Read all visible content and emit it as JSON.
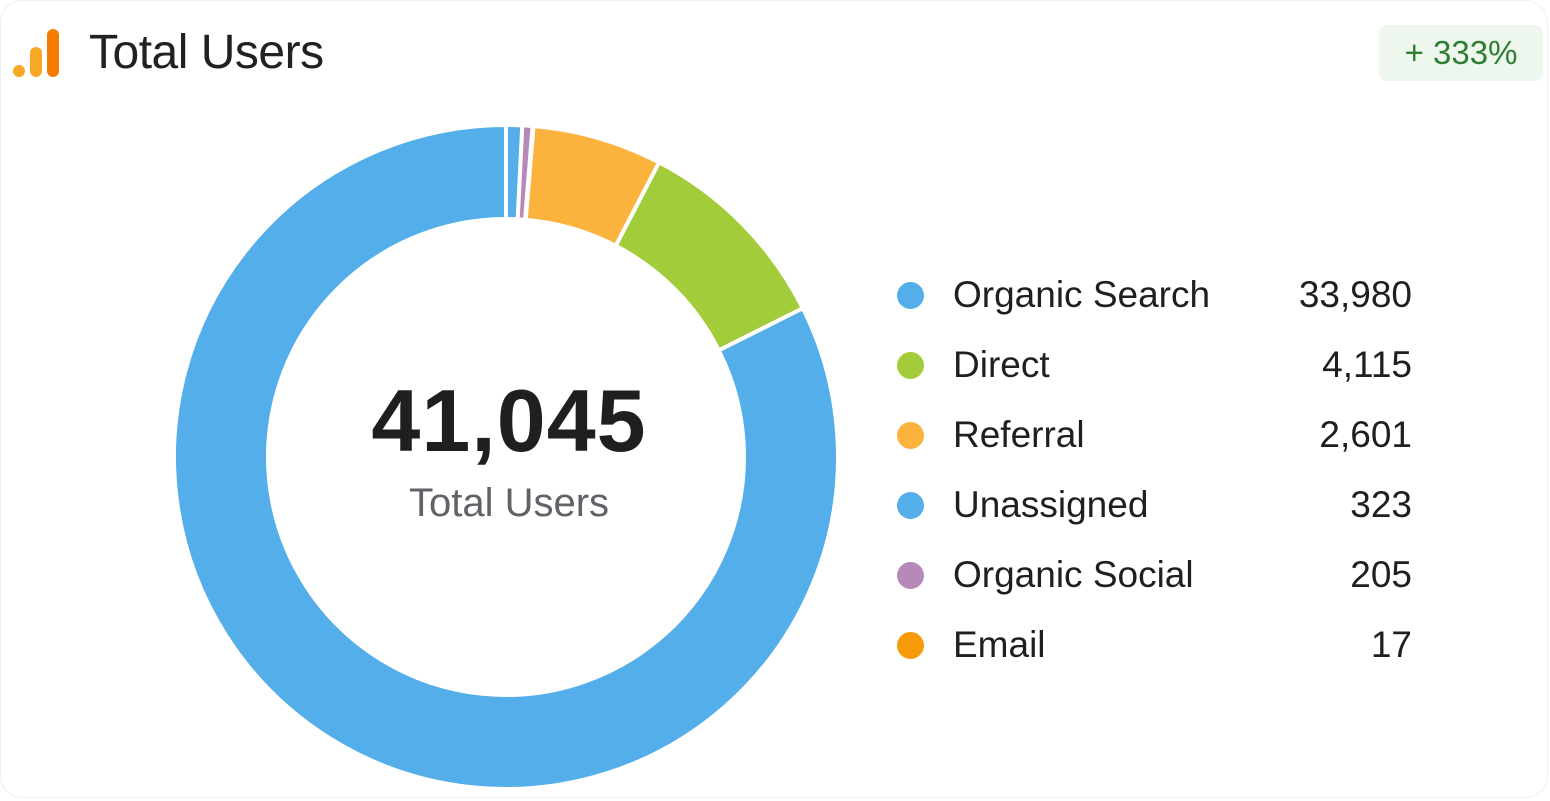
{
  "header": {
    "title": "Total Users",
    "icon": "analytics-bars-icon",
    "change": "+ 333%"
  },
  "colors": {
    "organic_search": "#53aeea",
    "direct": "#a2cc3a",
    "referral": "#fbb33e",
    "unassigned": "#53aeea",
    "organic_social": "#b689b8",
    "email": "#f79a0b",
    "icon_orange": "#f9a825",
    "badge_text": "#2e7d32"
  },
  "chart_data": {
    "type": "pie",
    "variant": "donut",
    "total": 41045,
    "center_value": "41,045",
    "center_label": "Total Users",
    "legend_position": "right",
    "categories": [
      "Organic Search",
      "Direct",
      "Referral",
      "Unassigned",
      "Organic Social",
      "Email"
    ],
    "values": [
      33980,
      4115,
      2601,
      323,
      205,
      17
    ],
    "value_labels": [
      "33,980",
      "4,115",
      "2,601",
      "323",
      "205",
      "17"
    ]
  }
}
